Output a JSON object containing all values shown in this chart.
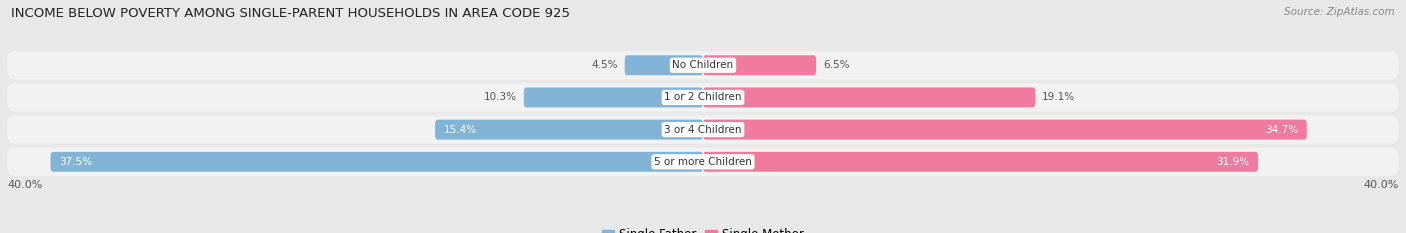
{
  "title": "INCOME BELOW POVERTY AMONG SINGLE-PARENT HOUSEHOLDS IN AREA CODE 925",
  "source": "Source: ZipAtlas.com",
  "categories": [
    "No Children",
    "1 or 2 Children",
    "3 or 4 Children",
    "5 or more Children"
  ],
  "single_father": [
    4.5,
    10.3,
    15.4,
    37.5
  ],
  "single_mother": [
    6.5,
    19.1,
    34.7,
    31.9
  ],
  "max_val": 40.0,
  "father_color": "#82b4d8",
  "mother_color": "#f07aa0",
  "bg_color": "#e8e8e8",
  "row_bg_color": "#f2f2f2",
  "label_color": "#555555",
  "title_fontsize": 9.5,
  "source_fontsize": 7.5,
  "tick_fontsize": 8.0,
  "bar_label_fontsize": 7.5,
  "cat_label_fontsize": 7.5,
  "legend_fontsize": 8.5
}
